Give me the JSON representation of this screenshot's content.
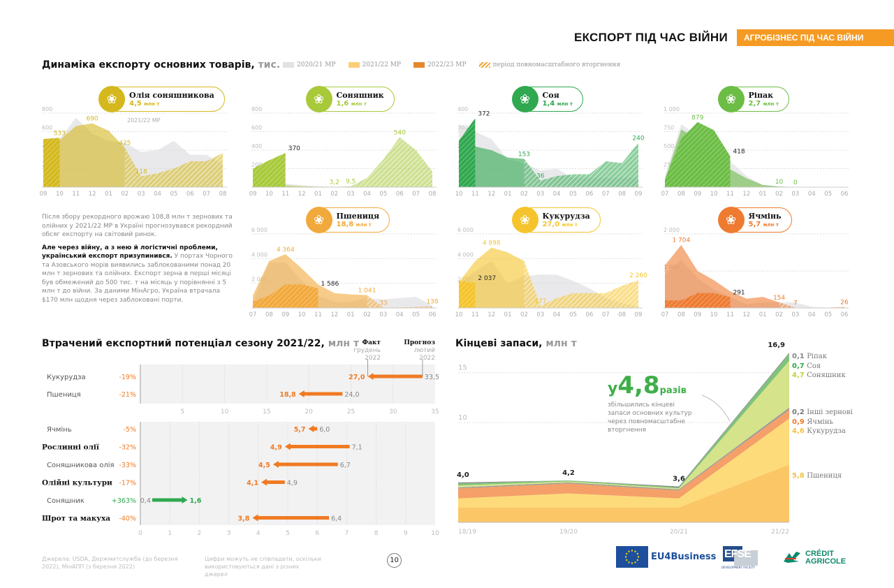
{
  "header": {
    "title": "ЕКСПОРТ ПІД ЧАС ВІЙНИ",
    "tag": "АГРОБІЗНЕС ПІД ЧАС ВІЙНИ",
    "tag_color": "#f59a23"
  },
  "export_dynamics": {
    "title": "Динаміка експорту основних товарів,",
    "unit": " тис. т",
    "legend": [
      {
        "label": "2020/21 МР",
        "color": "#e2e2e2"
      },
      {
        "label": "2021/22 МР",
        "color": "#fbcf75"
      },
      {
        "label": "2022/23 МР",
        "color": "#e4892b"
      },
      {
        "label": "період повномасштабного вторгнення",
        "color": "#f0a536",
        "hatched": true
      }
    ],
    "annotation": "2021/22 МР"
  },
  "paragraph": {
    "p1": "Після збору рекордного врожаю 108,8 млн т зернових та олійних у 2021/22 МР в Україні прогнозувався рекордний обсяг експорту на світовий ринок.",
    "p2_bold": "Але через війну, а з нею й логістичні проблеми, український експорт призупинився.",
    "p2_rest": " У портах Чорного та Азовського морів виявились заблокованими понад 20 млн т зернових та олійних. Експорт зерна в перші місяці був обмежений до 500 тис. т на місяць у порівнянні з 5 млн т до війни. За даними МінАгро, Україна втрачала $170 млн щодня через заблоковані порти."
  },
  "chart_data": [
    {
      "id": "sunoil",
      "type": "area",
      "title": "Олія соняшникова",
      "total": "4,5",
      "total_unit": "млн т",
      "color": "#d4b81e",
      "icon": "oil-drop-icon",
      "x": [
        "09",
        "10",
        "11",
        "12",
        "01",
        "02",
        "03",
        "04",
        "05",
        "06",
        "07",
        "08"
      ],
      "yticks": [
        200,
        400,
        600,
        800
      ],
      "ylim": [
        0,
        800
      ],
      "series": [
        {
          "name": "2020/21 МР",
          "values": [
            400,
            520,
            750,
            580,
            500,
            480,
            380,
            400,
            500,
            350,
            350,
            250
          ]
        },
        {
          "name": "2021/22 МР",
          "values": [
            520,
            510,
            660,
            690,
            610,
            425,
            118,
            150,
            200,
            280,
            280,
            370
          ]
        },
        {
          "name": "2022/23 МР",
          "values": [
            520,
            533,
            null,
            null,
            null,
            null,
            null,
            null,
            null,
            null,
            null,
            null
          ]
        }
      ],
      "labels": [
        {
          "x": 1,
          "v": 533,
          "t": "533",
          "dark": false
        },
        {
          "x": 3,
          "v": 690,
          "t": "690"
        },
        {
          "x": 5,
          "v": 425,
          "t": "425"
        },
        {
          "x": 6,
          "v": 118,
          "t": "118"
        }
      ],
      "war_from": 5.0
    },
    {
      "id": "sunflower",
      "type": "area",
      "title": "Соняшник",
      "total": "1,6",
      "total_unit": "млн т",
      "color": "#a8c93a",
      "icon": "sunflower-icon",
      "x": [
        "09",
        "10",
        "11",
        "12",
        "01",
        "02",
        "03",
        "04",
        "05",
        "06",
        "07",
        "08"
      ],
      "yticks": [
        200,
        400,
        600,
        800
      ],
      "ylim": [
        0,
        800
      ],
      "series": [
        {
          "name": "2020/21 МР",
          "values": [
            40,
            50,
            40,
            20,
            10,
            5,
            5,
            5,
            5,
            5,
            5,
            5
          ]
        },
        {
          "name": "2021/22 МР",
          "values": [
            30,
            40,
            20,
            10,
            5,
            3.2,
            9.5,
            100,
            300,
            540,
            400,
            170
          ]
        },
        {
          "name": "2022/23 МР",
          "values": [
            200,
            290,
            370,
            null,
            null,
            null,
            null,
            null,
            null,
            null,
            null,
            null
          ]
        }
      ],
      "labels": [
        {
          "x": 2,
          "v": 370,
          "t": "370",
          "dark": true
        },
        {
          "x": 5,
          "v": 3.2,
          "t": "3,2"
        },
        {
          "x": 6,
          "v": 9.5,
          "t": "9,5"
        },
        {
          "x": 9,
          "v": 540,
          "t": "540"
        }
      ],
      "war_from": 6.0
    },
    {
      "id": "soy",
      "type": "area",
      "title": "Соя",
      "total": "1,4",
      "total_unit": "млн т",
      "color": "#2fa84f",
      "icon": "soy-sprout-icon",
      "x": [
        "10",
        "11",
        "12",
        "01",
        "02",
        "03",
        "04",
        "05",
        "06",
        "07",
        "08",
        "09"
      ],
      "yticks": [
        100,
        200,
        300,
        400
      ],
      "ylim": [
        0,
        400
      ],
      "series": [
        {
          "name": "2020/21 МР",
          "values": [
            340,
            300,
            260,
            150,
            130,
            90,
            100,
            50,
            50,
            50,
            50,
            50
          ]
        },
        {
          "name": "2021/22 МР",
          "values": [
            250,
            220,
            200,
            160,
            153,
            36,
            60,
            70,
            70,
            140,
            130,
            240
          ]
        },
        {
          "name": "2022/23 МР",
          "values": [
            250,
            372,
            null,
            null,
            null,
            null,
            null,
            null,
            null,
            null,
            null,
            null
          ]
        }
      ],
      "labels": [
        {
          "x": 1,
          "v": 372,
          "t": "372",
          "dark": true
        },
        {
          "x": 4,
          "v": 153,
          "t": "153"
        },
        {
          "x": 5,
          "v": 36,
          "t": "36"
        },
        {
          "x": 11,
          "v": 240,
          "t": "240"
        }
      ],
      "war_from": 4.0
    },
    {
      "id": "rapeseed",
      "type": "area",
      "title": "Ріпак",
      "total": "2,7",
      "total_unit": "млн т",
      "color": "#6cbd45",
      "icon": "rapeseed-icon",
      "x": [
        "07",
        "08",
        "09",
        "10",
        "11",
        "12",
        "01",
        "02",
        "03",
        "04",
        "05",
        "06"
      ],
      "yticks": [
        250,
        500,
        750,
        1000
      ],
      "ylim": [
        0,
        1000
      ],
      "series": [
        {
          "name": "2020/21 МР",
          "values": [
            150,
            850,
            700,
            500,
            350,
            150,
            30,
            10,
            5,
            5,
            5,
            5
          ]
        },
        {
          "name": "2021/22 МР",
          "values": [
            100,
            780,
            650,
            480,
            240,
            120,
            30,
            10,
            0,
            0,
            0,
            0
          ]
        },
        {
          "name": "2022/23 МР",
          "values": [
            100,
            650,
            879,
            770,
            418,
            null,
            null,
            null,
            null,
            null,
            null,
            null
          ]
        }
      ],
      "labels": [
        {
          "x": 2,
          "v": 879,
          "t": "879"
        },
        {
          "x": 4,
          "v": 418,
          "t": "418",
          "dark": true
        },
        {
          "x": 7,
          "v": 10,
          "t": "10"
        },
        {
          "x": 8,
          "v": 0,
          "t": "0"
        }
      ],
      "war_from": 7.5
    },
    {
      "id": "wheat",
      "type": "area",
      "title": "Пшениця",
      "total": "18,8",
      "total_unit": "млн т",
      "color": "#f2a93b",
      "icon": "wheat-icon",
      "x": [
        "07",
        "08",
        "09",
        "10",
        "11",
        "12",
        "01",
        "02",
        "03",
        "04",
        "05",
        "06"
      ],
      "yticks": [
        2000,
        4000,
        6000
      ],
      "ylim": [
        0,
        6000
      ],
      "series": [
        {
          "name": "2020/21 МР",
          "values": [
            500,
            3700,
            3700,
            2200,
            1000,
            500,
            500,
            800,
            700,
            800,
            900,
            200
          ]
        },
        {
          "name": "2021/22 МР",
          "values": [
            1000,
            3800,
            4364,
            3200,
            1900,
            1200,
            1100,
            1041,
            33,
            50,
            80,
            138
          ]
        },
        {
          "name": "2022/23 МР",
          "values": [
            500,
            1000,
            1900,
            1900,
            1586,
            null,
            null,
            null,
            null,
            null,
            null,
            null
          ]
        }
      ],
      "labels": [
        {
          "x": 2,
          "v": 4364,
          "t": "4 364"
        },
        {
          "x": 4,
          "v": 1586,
          "t": "1 586",
          "dark": true
        },
        {
          "x": 7,
          "v": 1041,
          "t": "1 041"
        },
        {
          "x": 8,
          "v": 33,
          "t": "33"
        },
        {
          "x": 11,
          "v": 138,
          "t": "138"
        }
      ],
      "war_from": 7.0
    },
    {
      "id": "corn",
      "type": "area",
      "title": "Кукурудза",
      "total": "27,0",
      "total_unit": "млн т",
      "color": "#f5c42c",
      "icon": "corn-icon",
      "x": [
        "10",
        "11",
        "12",
        "01",
        "02",
        "03",
        "04",
        "05",
        "06",
        "07",
        "08",
        "09"
      ],
      "yticks": [
        2000,
        4000,
        6000
      ],
      "ylim": [
        0,
        6000
      ],
      "series": [
        {
          "name": "2020/21 МР",
          "values": [
            2000,
            3000,
            3800,
            2000,
            2600,
            2700,
            2700,
            2200,
            1600,
            800,
            400,
            100
          ]
        },
        {
          "name": "2021/22 МР",
          "values": [
            2100,
            3800,
            4898,
            4500,
            3800,
            177,
            800,
            1200,
            1200,
            1200,
            1800,
            2260
          ]
        },
        {
          "name": "2022/23 МР",
          "values": [
            2200,
            2037,
            null,
            null,
            null,
            null,
            null,
            null,
            null,
            null,
            null,
            null
          ]
        }
      ],
      "labels": [
        {
          "x": 1,
          "v": 2037,
          "t": "2 037",
          "dark": true
        },
        {
          "x": 2,
          "v": 4898,
          "t": "4 898"
        },
        {
          "x": 5,
          "v": 177,
          "t": "177"
        },
        {
          "x": 11,
          "v": 2260,
          "t": "2 260"
        }
      ],
      "war_from": 4.0
    },
    {
      "id": "barley",
      "type": "area",
      "title": "Ячмінь",
      "total": "5,7",
      "total_unit": "млн т",
      "color": "#ee7b30",
      "icon": "barley-icon",
      "x": [
        "07",
        "08",
        "09",
        "10",
        "11",
        "12",
        "01",
        "02",
        "03",
        "04",
        "05",
        "06"
      ],
      "yticks": [
        1000,
        2000
      ],
      "ylim": [
        0,
        2000
      ],
      "series": [
        {
          "name": "2020/21 МР",
          "values": [
            900,
            1300,
            800,
            500,
            300,
            100,
            150,
            150,
            150,
            30,
            10,
            30
          ]
        },
        {
          "name": "2021/22 МР",
          "values": [
            1150,
            1704,
            1000,
            750,
            450,
            250,
            300,
            154,
            7,
            10,
            10,
            26
          ]
        },
        {
          "name": "2022/23 МР",
          "values": [
            200,
            200,
            400,
            400,
            291,
            null,
            null,
            null,
            null,
            null,
            null,
            null
          ]
        }
      ],
      "labels": [
        {
          "x": 1,
          "v": 1704,
          "t": "1 704"
        },
        {
          "x": 4,
          "v": 291,
          "t": "291",
          "dark": true
        },
        {
          "x": 7,
          "v": 154,
          "t": "154"
        },
        {
          "x": 8,
          "v": 7,
          "t": "7"
        },
        {
          "x": 11,
          "v": 26,
          "t": "26"
        }
      ],
      "war_from": 7.0
    }
  ],
  "lost_potential": {
    "title": "Втрачений експортний потенціал сезону 2021/22,",
    "unit": " млн т",
    "fact_label": "Факт",
    "fact_sub": "грудень 2022",
    "forecast_label": "Прогноз",
    "forecast_sub": "лютий 2022",
    "chart_data": {
      "type": "bar",
      "top": {
        "xlim": [
          0,
          35
        ],
        "ticks": [
          5,
          10,
          15,
          20,
          25,
          30,
          35
        ],
        "rows": [
          {
            "name": "Кукурудза",
            "bold": false,
            "pct": "-19%",
            "fact": 27.0,
            "forecast": 33.5,
            "fact_t": "27,0",
            "forecast_t": "33,5"
          },
          {
            "name": "Пшениця",
            "bold": false,
            "pct": "-21%",
            "fact": 18.8,
            "forecast": 24.0,
            "fact_t": "18,8",
            "forecast_t": "24,0"
          }
        ]
      },
      "bottom": {
        "xlim": [
          0,
          10
        ],
        "ticks": [
          0,
          1,
          2,
          3,
          4,
          5,
          6,
          7,
          8,
          9,
          10
        ],
        "rows": [
          {
            "name": "Ячмінь",
            "bold": false,
            "pct": "-5%",
            "fact": 5.7,
            "forecast": 6.0,
            "fact_t": "5,7",
            "forecast_t": "6,0"
          },
          {
            "name": "Рослинні олії",
            "bold": true,
            "pct": "-32%",
            "fact": 4.9,
            "forecast": 7.1,
            "fact_t": "4,9",
            "forecast_t": "7,1"
          },
          {
            "name": "Соняшникова олія",
            "bold": false,
            "pct": "-33%",
            "fact": 4.5,
            "forecast": 6.7,
            "fact_t": "4,5",
            "forecast_t": "6,7"
          },
          {
            "name": "Олійні культури",
            "bold": true,
            "pct": "-17%",
            "fact": 4.1,
            "forecast": 4.9,
            "fact_t": "4,1",
            "forecast_t": "4,9"
          },
          {
            "name": "Соняшник",
            "bold": false,
            "pct": "+363%",
            "fact": 1.6,
            "forecast": 0.4,
            "fact_t": "1,6",
            "forecast_t": "0,4",
            "up": true
          },
          {
            "name": "Шрот та макуха",
            "bold": true,
            "pct": "-40%",
            "fact": 3.8,
            "forecast": 6.4,
            "fact_t": "3,8",
            "forecast_t": "6,4"
          }
        ]
      }
    }
  },
  "stocks": {
    "title": "Кінцеві запаси,",
    "unit": " млн т",
    "callout_prefix": "у",
    "callout_value": "4,8",
    "callout_suffix": "разів",
    "callout_text": "збільшились кінцеві запаси основних культур через повномасштабне вторгнення",
    "chart_data": {
      "type": "area",
      "x": [
        "18/19",
        "19/20",
        "20/21",
        "21/22"
      ],
      "yticks": [
        10,
        15
      ],
      "ylim": [
        0,
        17.5
      ],
      "totals": [
        "4,0",
        "4,2",
        "3,6",
        "16,9"
      ],
      "series": [
        {
          "name": "Пшениця",
          "color": "#fbc766",
          "values": [
            1.5,
            1.5,
            1.5,
            5.8
          ],
          "label": "5,8"
        },
        {
          "name": "Кукурудза",
          "color": "#fddb7a",
          "values": [
            0.9,
            1.4,
            0.9,
            4.6
          ],
          "label": "4,6"
        },
        {
          "name": "Ячмінь",
          "color": "#f4a068",
          "values": [
            1.0,
            1.0,
            0.8,
            0.9
          ],
          "label": "0,9"
        },
        {
          "name": "Інші зернові",
          "color": "#999999",
          "values": [
            0.1,
            0.1,
            0.1,
            0.2
          ],
          "label": "0,2"
        },
        {
          "name": "Соняшник",
          "color": "#d5e38a",
          "values": [
            0.2,
            0.1,
            0.1,
            4.7
          ],
          "label": "4,7"
        },
        {
          "name": "Соя",
          "color": "#7fc37a",
          "values": [
            0.2,
            0.1,
            0.1,
            0.7
          ],
          "label": "0,7"
        },
        {
          "name": "Ріпак",
          "color": "#888888",
          "values": [
            0.1,
            0.0,
            0.1,
            0.1
          ],
          "label": "0,1"
        }
      ]
    }
  },
  "footer": {
    "sources": "Джерела: USDA, Держмитслужба (до березня 2022), МінАПП (з березня 2022)",
    "note": "Цифри можуть не співпадати, оскільки використовуються дані з різних джерел",
    "page": "10",
    "logos": [
      "EU4Business",
      "EFSE",
      "DEVELOPMENT FACILITY",
      "CRÉDIT",
      "AGRICOLE"
    ]
  }
}
